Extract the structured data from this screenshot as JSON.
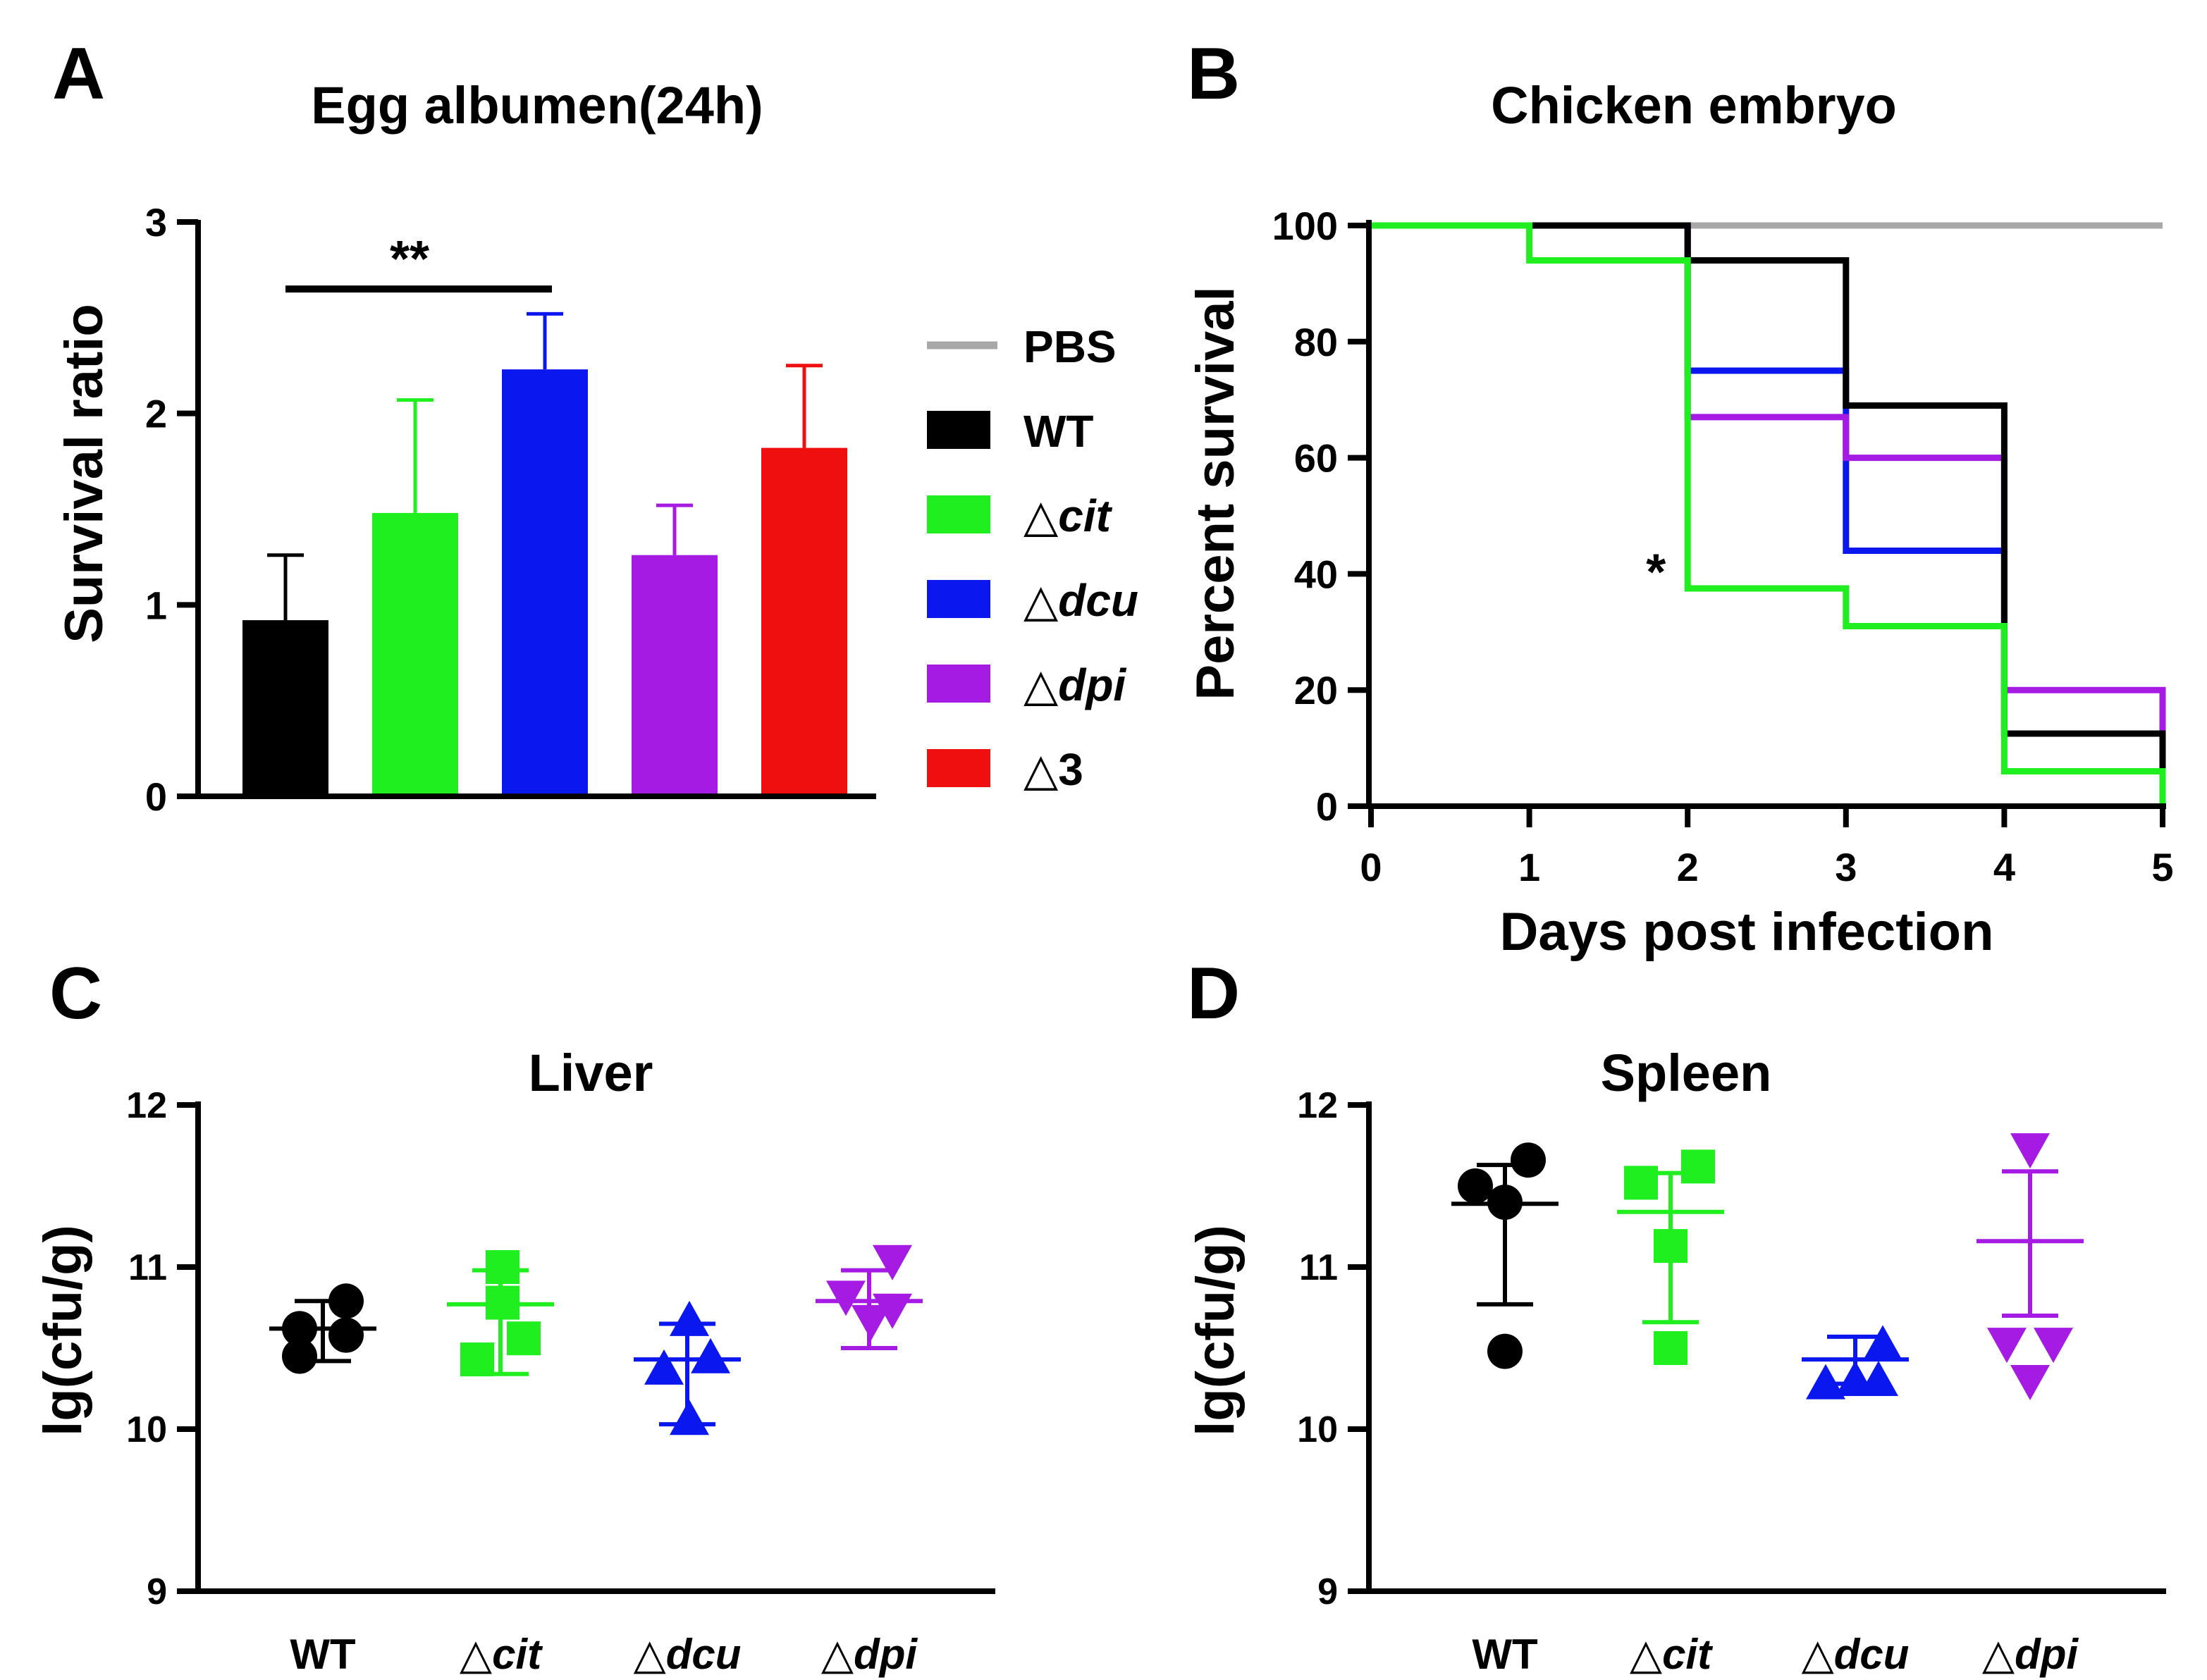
{
  "panels": {
    "A": {
      "letter": "A"
    },
    "B": {
      "letter": "B"
    },
    "C": {
      "letter": "C"
    },
    "D": {
      "letter": "D"
    }
  },
  "legend": {
    "items": [
      {
        "delta": "",
        "name": "PBS",
        "italic": false,
        "color": "#a8a8a8",
        "swatch": "line"
      },
      {
        "delta": "",
        "name": "WT",
        "italic": false,
        "color": "#000000",
        "swatch": "box"
      },
      {
        "delta": "△",
        "name": "cit",
        "italic": true,
        "color": "#1fee1f",
        "swatch": "box"
      },
      {
        "delta": "△",
        "name": "dcu",
        "italic": true,
        "color": "#0b17ef",
        "swatch": "box"
      },
      {
        "delta": "△",
        "name": "dpi",
        "italic": true,
        "color": "#a61be4",
        "swatch": "box"
      },
      {
        "delta": "△",
        "name": "3",
        "italic": false,
        "color": "#f00f0f",
        "swatch": "box"
      }
    ]
  },
  "chart_data": [
    {
      "id": "A",
      "type": "bar",
      "title": "Egg albumen(24h)",
      "ylabel": "Survival ratio",
      "xlabel": "",
      "ylim": [
        0,
        3
      ],
      "yticks": [
        0,
        1,
        2,
        3
      ],
      "categories": [
        "WT",
        "△cit",
        "△dcu",
        "△dpi",
        "△3"
      ],
      "values": [
        0.92,
        1.48,
        2.23,
        1.26,
        1.82
      ],
      "error_upper": [
        1.26,
        2.07,
        2.52,
        1.52,
        2.25
      ],
      "colors": [
        "#000000",
        "#1fee1f",
        "#0b17ef",
        "#a61be4",
        "#f00f0f"
      ],
      "significance": {
        "label": "**",
        "from_category": 0,
        "to_category": 2,
        "y": 2.65
      }
    },
    {
      "id": "B",
      "type": "line",
      "step": true,
      "title": "Chicken embryo",
      "xlabel": "Days post infection",
      "ylabel": "Percent survival",
      "xlim": [
        0,
        5
      ],
      "ylim": [
        0,
        100
      ],
      "xticks": [
        0,
        1,
        2,
        3,
        4,
        5
      ],
      "yticks": [
        0,
        20,
        40,
        60,
        80,
        100
      ],
      "series": [
        {
          "name": "PBS",
          "color": "#a8a8a8",
          "x": [
            0,
            5
          ],
          "y": [
            100,
            100
          ]
        },
        {
          "name": "△dcu",
          "color": "#0b17ef",
          "x": [
            0,
            2,
            3,
            4,
            5
          ],
          "y": [
            100,
            75,
            44,
            12.5,
            12.5
          ]
        },
        {
          "name": "△dpi",
          "color": "#a61be4",
          "x": [
            0,
            2,
            3,
            4,
            5
          ],
          "y": [
            100,
            67,
            60,
            20,
            0
          ]
        },
        {
          "name": "WT",
          "color": "#000000",
          "x": [
            0,
            2,
            3,
            4,
            5
          ],
          "y": [
            100,
            94,
            69,
            12.5,
            6
          ]
        },
        {
          "name": "△cit",
          "color": "#1fee1f",
          "x": [
            0,
            1,
            2,
            3,
            4,
            5
          ],
          "y": [
            100,
            94,
            37.5,
            31,
            6,
            0
          ]
        }
      ],
      "annotations": [
        {
          "text": "*",
          "x": 1.8,
          "y": 40
        }
      ]
    },
    {
      "id": "C",
      "type": "scatter",
      "title": "Liver",
      "ylabel": "lg(cfu/g)",
      "xlabel": "",
      "ylim": [
        9,
        12
      ],
      "yticks": [
        9,
        10,
        11,
        12
      ],
      "categories": [
        {
          "delta": "",
          "name": "WT",
          "italic": false
        },
        {
          "delta": "△",
          "name": "cit",
          "italic": true
        },
        {
          "delta": "△",
          "name": "dcu",
          "italic": true
        },
        {
          "delta": "△",
          "name": "dpi",
          "italic": true
        }
      ],
      "groups": [
        {
          "marker": "circle",
          "color": "#000000",
          "points": [
            [
              -0.22,
              10.45
            ],
            [
              0.22,
              10.58
            ],
            [
              -0.22,
              10.62
            ],
            [
              0.22,
              10.79
            ]
          ],
          "mean": 10.62,
          "upper": 10.79,
          "lower": 10.42
        },
        {
          "marker": "square",
          "color": "#1fee1f",
          "points": [
            [
              -0.22,
              10.43
            ],
            [
              0.22,
              10.56
            ],
            [
              0.02,
              10.78
            ],
            [
              0.02,
              11.0
            ]
          ],
          "mean": 10.77,
          "upper": 10.98,
          "lower": 10.34
        },
        {
          "marker": "triangle-up",
          "color": "#0b17ef",
          "points": [
            [
              -0.22,
              10.37
            ],
            [
              0.22,
              10.44
            ],
            [
              0.02,
              10.06
            ],
            [
              0.02,
              10.67
            ]
          ],
          "mean": 10.43,
          "upper": 10.65,
          "lower": 10.03
        },
        {
          "marker": "triangle-down",
          "color": "#a61be4",
          "points": [
            [
              -0.22,
              10.82
            ],
            [
              0.22,
              10.74
            ],
            [
              0.02,
              10.67
            ],
            [
              0.22,
              11.04
            ]
          ],
          "mean": 10.79,
          "upper": 10.98,
          "lower": 10.5
        }
      ]
    },
    {
      "id": "D",
      "type": "scatter",
      "title": "Spleen",
      "ylabel": "lg(cfu/g)",
      "xlabel": "",
      "ylim": [
        9,
        12
      ],
      "yticks": [
        9,
        10,
        11,
        12
      ],
      "categories": [
        {
          "delta": "",
          "name": "WT",
          "italic": false
        },
        {
          "delta": "△",
          "name": "cit",
          "italic": true
        },
        {
          "delta": "△",
          "name": "dcu",
          "italic": true
        },
        {
          "delta": "△",
          "name": "dpi",
          "italic": true
        }
      ],
      "groups": [
        {
          "marker": "circle",
          "color": "#000000",
          "points": [
            [
              -0.28,
              11.5
            ],
            [
              0.22,
              11.66
            ],
            [
              0.0,
              11.4
            ],
            [
              0.0,
              10.48
            ]
          ],
          "mean": 11.39,
          "upper": 11.63,
          "lower": 10.77
        },
        {
          "marker": "square",
          "color": "#1fee1f",
          "points": [
            [
              -0.28,
              11.52
            ],
            [
              0.26,
              11.62
            ],
            [
              0.0,
              11.13
            ],
            [
              0.0,
              10.5
            ]
          ],
          "mean": 11.34,
          "upper": 11.58,
          "lower": 10.66
        },
        {
          "marker": "triangle-up",
          "color": "#0b17ef",
          "points": [
            [
              -0.28,
              10.28
            ],
            [
              0.26,
              10.52
            ],
            [
              0.0,
              10.3
            ],
            [
              0.22,
              10.3
            ]
          ],
          "mean": 10.43,
          "upper": 10.57,
          "lower": 10.28
        },
        {
          "marker": "triangle-down",
          "color": "#a61be4",
          "points": [
            [
              0.0,
              11.73
            ],
            [
              -0.22,
              10.53
            ],
            [
              0.22,
              10.53
            ],
            [
              0.0,
              10.3
            ]
          ],
          "mean": 11.16,
          "upper": 11.59,
          "lower": 10.7
        }
      ]
    }
  ]
}
